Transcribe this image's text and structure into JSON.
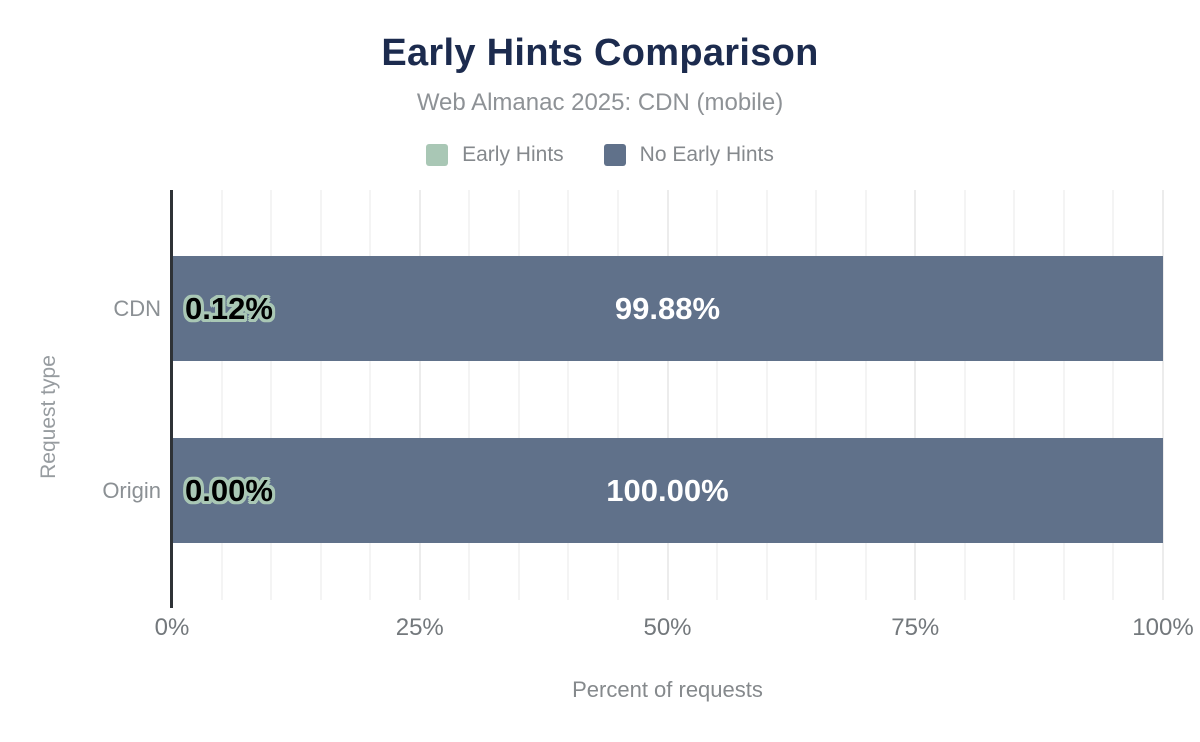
{
  "header": {
    "title": "Early Hints Comparison",
    "subtitle": "Web Almanac 2025: CDN (mobile)"
  },
  "chart_data": {
    "type": "bar",
    "orientation": "horizontal",
    "stacked": true,
    "title": "Early Hints Comparison",
    "subtitle": "Web Almanac 2025: CDN (mobile)",
    "categories": [
      "CDN",
      "Origin"
    ],
    "series": [
      {
        "name": "Early Hints",
        "color": "#a9c7b5",
        "values": [
          0.12,
          0.0
        ],
        "labels": [
          "0.12%",
          "0.00%"
        ]
      },
      {
        "name": "No Early Hints",
        "color": "#60718a",
        "values": [
          99.88,
          100.0
        ],
        "labels": [
          "99.88%",
          "100.00%"
        ]
      }
    ],
    "xlabel": "Percent of requests",
    "ylabel": "Request type",
    "xlim": [
      0,
      100
    ],
    "x_ticks": [
      "0%",
      "25%",
      "50%",
      "75%",
      "100%"
    ],
    "x_tick_values": [
      0,
      25,
      50,
      75,
      100
    ],
    "minor_grid_step": 5,
    "grid": true,
    "legend_position": "top"
  },
  "colors": {
    "title": "#1c2b4e",
    "subtitle_text": "#8e9296",
    "legend_text": "#85898d",
    "axis_line": "#2e3236",
    "tick_text": "#73787c",
    "category_text": "#8b9094",
    "gridline_minor": "#f4f4f4",
    "gridline_major": "#ececec",
    "early_hints": "#a9c7b5",
    "no_early_hints": "#60718a",
    "value_label_light": "#ffffff",
    "value_label_dark": "#000000",
    "background": "#ffffff"
  }
}
